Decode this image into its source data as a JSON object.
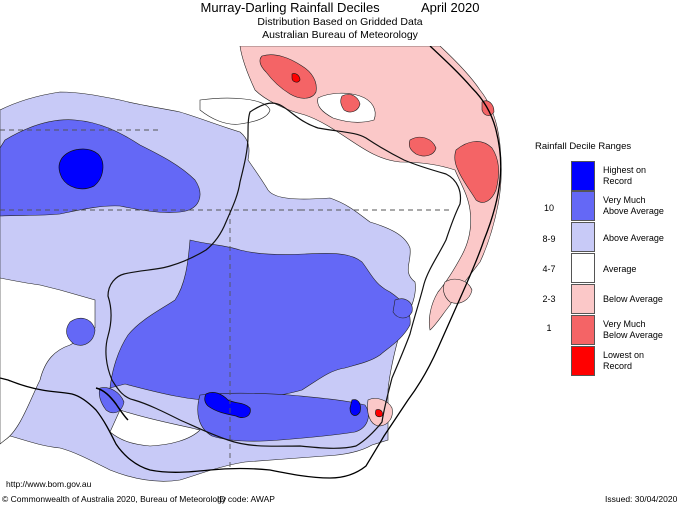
{
  "header": {
    "title": "Murray-Darling Rainfall Deciles",
    "period": "April 2020",
    "subtitle1": "Distribution Based on Gridded Data",
    "subtitle2": "Australian Bureau of Meteorology"
  },
  "legend": {
    "title": "Rainfall Decile Ranges",
    "items": [
      {
        "range": "",
        "label1": "Highest on",
        "label2": "Record",
        "color": "#0000ff"
      },
      {
        "range": "10",
        "label1": "Very Much",
        "label2": "Above Average",
        "color": "#6468f6"
      },
      {
        "range": "8-9",
        "label1": "Above Average",
        "label2": "",
        "color": "#c8caf7"
      },
      {
        "range": "4-7",
        "label1": "Average",
        "label2": "",
        "color": "#ffffff"
      },
      {
        "range": "2-3",
        "label1": "Below Average",
        "label2": "",
        "color": "#fbc8c8"
      },
      {
        "range": "1",
        "label1": "Very Much",
        "label2": "Below Average",
        "color": "#f46466"
      },
      {
        "range": "",
        "label1": "Lowest on",
        "label2": "Record",
        "color": "#ff0000"
      }
    ]
  },
  "footer": {
    "url": "http://www.bom.gov.au",
    "copyright": "© Commonwealth of Australia 2020, Bureau of Meteorology",
    "id_code": "ID code: AWAP",
    "issued": "Issued: 30/04/2020"
  }
}
